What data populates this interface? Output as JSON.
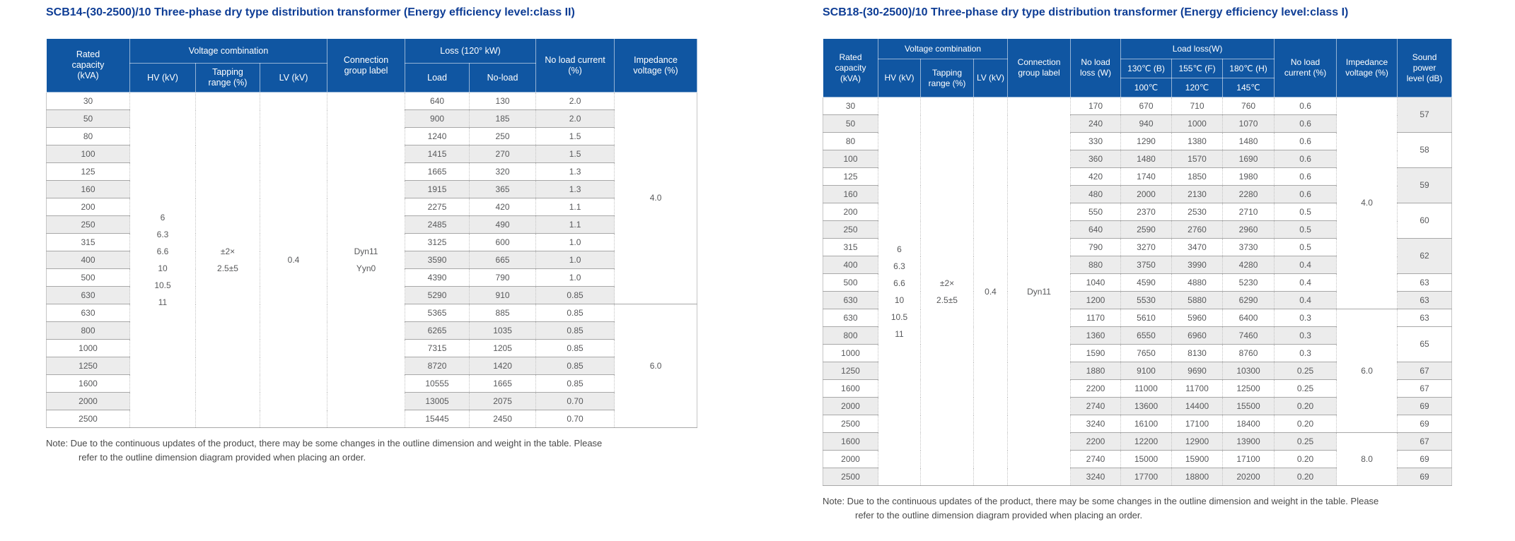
{
  "colors": {
    "header_bg": "#1056a2",
    "title_text": "#0e3d95",
    "alt_row": "#ececec",
    "body_text": "#58595b",
    "grid_line": "#a8a8a8"
  },
  "tables": [
    {
      "title": "SCB14-(30-2500)/10 Three-phase dry type distribution transformer (Energy efficiency level:class II)",
      "header_rows": [
        [
          {
            "label": "Rated\ncapacity\n(kVA)",
            "rowspan": 2,
            "name": "header-rated-capacity"
          },
          {
            "label": "Voltage combination",
            "colspan": 3,
            "name": "header-voltage-combination"
          },
          {
            "label": "Connection\ngroup label",
            "rowspan": 2,
            "name": "header-connection-group-label"
          },
          {
            "label": "Loss  (120° kW)",
            "colspan": 2,
            "name": "header-loss"
          },
          {
            "label": "No load current\n(%)",
            "rowspan": 2,
            "name": "header-no-load-current"
          },
          {
            "label": "Impedance\nvoltage (%)",
            "rowspan": 2,
            "name": "header-impedance-voltage"
          }
        ],
        [
          {
            "label": "HV (kV)",
            "name": "header-hv"
          },
          {
            "label": "Tapping\nrange (%)",
            "name": "header-tapping-range"
          },
          {
            "label": "LV (kV)",
            "name": "header-lv"
          },
          {
            "label": "Load",
            "name": "header-load"
          },
          {
            "label": "No-load",
            "name": "header-no-load"
          }
        ]
      ],
      "fields": [
        "rated-capacity",
        "load-loss",
        "no-load-loss",
        "no-load-current"
      ],
      "merged": {
        "hv": [
          "6",
          "6.3",
          "6.6",
          "10",
          "10.5",
          "11"
        ],
        "tapping": [
          "±2×",
          "2.5±5"
        ],
        "lv": "0.4",
        "connection": [
          "Dyn11",
          "Yyn0"
        ]
      },
      "rows": [
        [
          "30",
          "640",
          "130",
          "2.0"
        ],
        [
          "50",
          "900",
          "185",
          "2.0"
        ],
        [
          "80",
          "1240",
          "250",
          "1.5"
        ],
        [
          "100",
          "1415",
          "270",
          "1.5"
        ],
        [
          "125",
          "1665",
          "320",
          "1.3"
        ],
        [
          "160",
          "1915",
          "365",
          "1.3"
        ],
        [
          "200",
          "2275",
          "420",
          "1.1"
        ],
        [
          "250",
          "2485",
          "490",
          "1.1"
        ],
        [
          "315",
          "3125",
          "600",
          "1.0"
        ],
        [
          "400",
          "3590",
          "665",
          "1.0"
        ],
        [
          "500",
          "4390",
          "790",
          "1.0"
        ],
        [
          "630",
          "5290",
          "910",
          "0.85"
        ],
        [
          "630",
          "5365",
          "885",
          "0.85"
        ],
        [
          "800",
          "6265",
          "1035",
          "0.85"
        ],
        [
          "1000",
          "7315",
          "1205",
          "0.85"
        ],
        [
          "1250",
          "8720",
          "1420",
          "0.85"
        ],
        [
          "1600",
          "10555",
          "1665",
          "0.85"
        ],
        [
          "2000",
          "13005",
          "2075",
          "0.70"
        ],
        [
          "2500",
          "15445",
          "2450",
          "0.70"
        ]
      ],
      "impedance_blocks": [
        {
          "value": "4.0",
          "span": 12
        },
        {
          "value": "6.0",
          "span": 7
        }
      ],
      "note": [
        "Note: Due to the continuous updates of the product, there may be some changes in the outline dimension and weight in the table. Please",
        "refer to the outline dimension diagram provided when placing an order."
      ]
    },
    {
      "title": "SCB18-(30-2500)/10 Three-phase dry type distribution transformer (Energy efficiency level:class I)",
      "header_rows": [
        [
          {
            "label": "Rated\ncapacity\n(kVA)",
            "rowspan": 3,
            "name": "header-rated-capacity"
          },
          {
            "label": "Voltage combination",
            "colspan": 3,
            "name": "header-voltage-combination"
          },
          {
            "label": "Connection\ngroup label",
            "rowspan": 3,
            "name": "header-connection-group-label"
          },
          {
            "label": "No load\nloss (W)",
            "rowspan": 3,
            "name": "header-no-load-loss"
          },
          {
            "label": "Load loss(W)",
            "colspan": 3,
            "name": "header-load-loss"
          },
          {
            "label": "No load\ncurrent (%)",
            "rowspan": 3,
            "name": "header-no-load-current"
          },
          {
            "label": "Impedance\nvoltage (%)",
            "rowspan": 3,
            "name": "header-impedance-voltage"
          },
          {
            "label": "Sound\npower\nlevel (dB)",
            "rowspan": 3,
            "name": "header-sound-power-level"
          }
        ],
        [
          {
            "label": "HV (kV)",
            "rowspan": 2,
            "name": "header-hv"
          },
          {
            "label": "Tapping\nrange (%)",
            "rowspan": 2,
            "name": "header-tapping-range"
          },
          {
            "label": "LV (kV)",
            "rowspan": 2,
            "name": "header-lv"
          },
          {
            "label": "130℃ (B)",
            "name": "header-130c-b"
          },
          {
            "label": "155℃ (F)",
            "name": "header-155c-f"
          },
          {
            "label": "180℃ (H)",
            "name": "header-180c-h"
          }
        ],
        [
          {
            "label": "100℃",
            "name": "header-100c"
          },
          {
            "label": "120℃",
            "name": "header-120c"
          },
          {
            "label": "145℃",
            "name": "header-145c"
          }
        ]
      ],
      "fields": [
        "rated-capacity",
        "no-load-loss",
        "load-loss-130c",
        "load-loss-155c",
        "load-loss-180c",
        "no-load-current"
      ],
      "merged": {
        "hv": [
          "6",
          "6.3",
          "6.6",
          "10",
          "10.5",
          "11"
        ],
        "tapping": [
          "±2×",
          "2.5±5"
        ],
        "lv": "0.4",
        "connection": [
          "Dyn11"
        ]
      },
      "rows": [
        [
          "30",
          "170",
          "670",
          "710",
          "760",
          "0.6"
        ],
        [
          "50",
          "240",
          "940",
          "1000",
          "1070",
          "0.6"
        ],
        [
          "80",
          "330",
          "1290",
          "1380",
          "1480",
          "0.6"
        ],
        [
          "100",
          "360",
          "1480",
          "1570",
          "1690",
          "0.6"
        ],
        [
          "125",
          "420",
          "1740",
          "1850",
          "1980",
          "0.6"
        ],
        [
          "160",
          "480",
          "2000",
          "2130",
          "2280",
          "0.6"
        ],
        [
          "200",
          "550",
          "2370",
          "2530",
          "2710",
          "0.5"
        ],
        [
          "250",
          "640",
          "2590",
          "2760",
          "2960",
          "0.5"
        ],
        [
          "315",
          "790",
          "3270",
          "3470",
          "3730",
          "0.5"
        ],
        [
          "400",
          "880",
          "3750",
          "3990",
          "4280",
          "0.4"
        ],
        [
          "500",
          "1040",
          "4590",
          "4880",
          "5230",
          "0.4"
        ],
        [
          "630",
          "1200",
          "5530",
          "5880",
          "6290",
          "0.4"
        ],
        [
          "630",
          "1170",
          "5610",
          "5960",
          "6400",
          "0.3"
        ],
        [
          "800",
          "1360",
          "6550",
          "6960",
          "7460",
          "0.3"
        ],
        [
          "1000",
          "1590",
          "7650",
          "8130",
          "8760",
          "0.3"
        ],
        [
          "1250",
          "1880",
          "9100",
          "9690",
          "10300",
          "0.25"
        ],
        [
          "1600",
          "2200",
          "11000",
          "11700",
          "12500",
          "0.25"
        ],
        [
          "2000",
          "2740",
          "13600",
          "14400",
          "15500",
          "0.20"
        ],
        [
          "2500",
          "3240",
          "16100",
          "17100",
          "18400",
          "0.20"
        ],
        [
          "1600",
          "2200",
          "12200",
          "12900",
          "13900",
          "0.25"
        ],
        [
          "2000",
          "2740",
          "15000",
          "15900",
          "17100",
          "0.20"
        ],
        [
          "2500",
          "3240",
          "17700",
          "18800",
          "20200",
          "0.20"
        ]
      ],
      "impedance_blocks": [
        {
          "value": "4.0",
          "span": 12
        },
        {
          "value": "6.0",
          "span": 7
        },
        {
          "value": "8.0",
          "span": 3
        }
      ],
      "sound_blocks": [
        {
          "value": "57",
          "span": 2,
          "shaded": true
        },
        {
          "value": "58",
          "span": 2,
          "shaded": false
        },
        {
          "value": "59",
          "span": 2,
          "shaded": true
        },
        {
          "value": "60",
          "span": 2,
          "shaded": false
        },
        {
          "value": "62",
          "span": 2,
          "shaded": true
        },
        {
          "value": "63",
          "span": 1,
          "shaded": false
        },
        {
          "value": "63",
          "span": 1,
          "shaded": true
        },
        {
          "value": "63",
          "span": 1,
          "shaded": false
        },
        {
          "value": "65",
          "span": 2,
          "shaded": false
        },
        {
          "value": "67",
          "span": 1,
          "shaded": true
        },
        {
          "value": "67",
          "span": 1,
          "shaded": false
        },
        {
          "value": "69",
          "span": 1,
          "shaded": true
        },
        {
          "value": "69",
          "span": 1,
          "shaded": false
        },
        {
          "value": "67",
          "span": 1,
          "shaded": true
        },
        {
          "value": "69",
          "span": 1,
          "shaded": false
        },
        {
          "value": "69",
          "span": 1,
          "shaded": true
        }
      ],
      "note": [
        "Note: Due to the continuous updates of the product, there may be some changes in the outline dimension and weight in the table. Please",
        "refer to the outline dimension diagram provided when placing an order."
      ]
    }
  ]
}
